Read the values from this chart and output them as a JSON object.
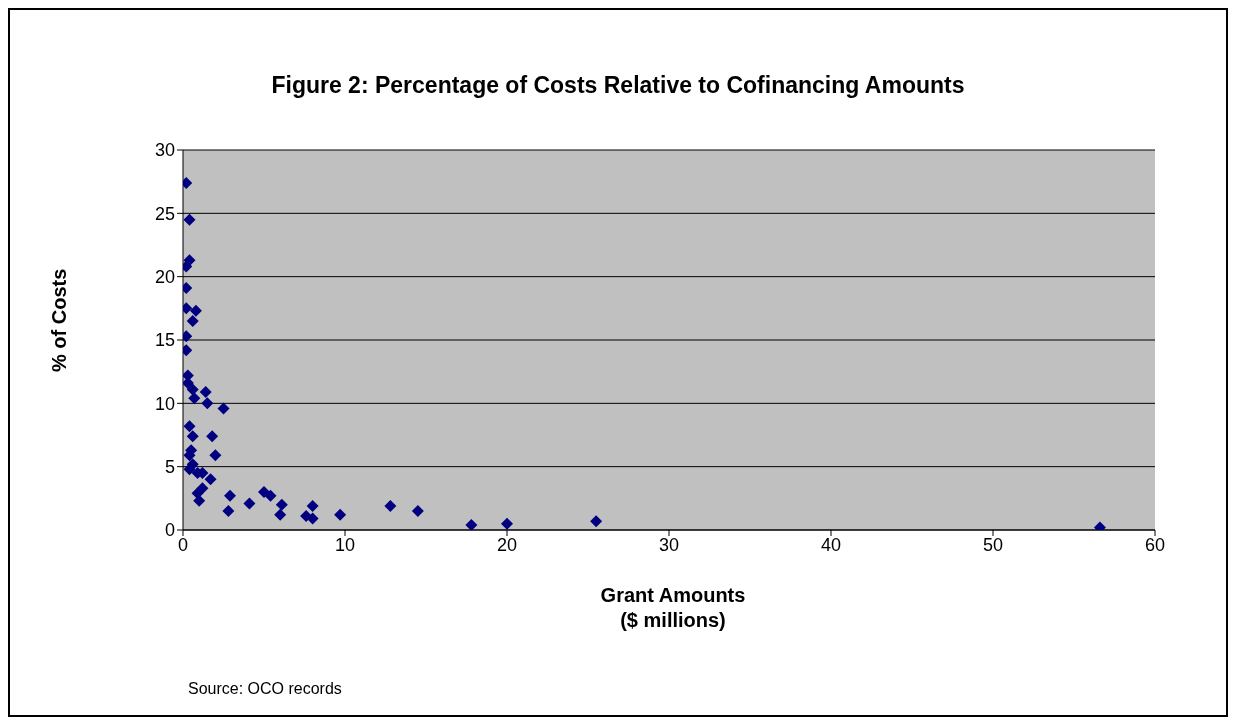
{
  "chart_data": {
    "type": "scatter",
    "title": "Figure 2: Percentage of Costs Relative to Cofinancing Amounts",
    "xlabel": "Grant Amounts\n($ millions)",
    "ylabel": "% of Costs",
    "annotations": [
      "Source: OCO records"
    ],
    "x": [
      0.2,
      0.4,
      0.4,
      0.2,
      0.2,
      0.2,
      0.8,
      0.6,
      0.2,
      0.2,
      0.3,
      0.3,
      0.6,
      1.4,
      0.7,
      1.5,
      2.5,
      0.4,
      0.6,
      1.8,
      0.5,
      2.0,
      0.4,
      0.6,
      0.4,
      0.9,
      1.2,
      1.7,
      1.2,
      0.9,
      1.0,
      2.9,
      2.8,
      4.1,
      5.0,
      5.4,
      6.1,
      6.0,
      7.6,
      8.0,
      8.0,
      9.7,
      12.8,
      14.5,
      17.8,
      20.0,
      25.5,
      56.6
    ],
    "series": [
      {
        "color": "#000080",
        "values": [
          27.4,
          24.5,
          21.3,
          20.8,
          19.1,
          17.5,
          17.3,
          16.5,
          15.3,
          14.2,
          12.2,
          11.6,
          11.1,
          10.9,
          10.4,
          10.0,
          9.6,
          8.2,
          7.4,
          7.4,
          6.3,
          5.9,
          5.9,
          5.2,
          4.8,
          4.5,
          4.5,
          4.0,
          3.3,
          2.9,
          2.3,
          2.7,
          1.5,
          2.1,
          3.0,
          2.7,
          2.0,
          1.2,
          1.1,
          1.9,
          0.9,
          1.2,
          1.9,
          1.5,
          0.4,
          0.5,
          0.7,
          0.2
        ]
      }
    ],
    "xlim": [
      0,
      60
    ],
    "xticks": [
      0,
      10,
      20,
      30,
      40,
      50,
      60
    ],
    "ylim": [
      0,
      30
    ],
    "yticks": [
      0,
      5,
      10,
      15,
      20,
      25,
      30
    ],
    "grid": "y",
    "legend": false,
    "marker": "diamond"
  }
}
